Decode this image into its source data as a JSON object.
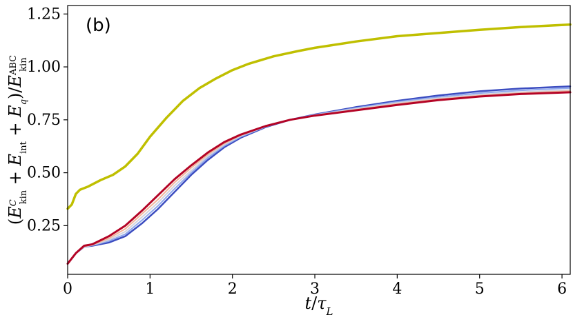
{
  "chart_data": {
    "type": "line",
    "panel_label": "(b)",
    "xlabel": "t/τ_L",
    "ylabel": "(E_kin^C + E_int + E_q)/E_kin^ABC",
    "xlim": [
      0,
      6.1
    ],
    "ylim": [
      0.02,
      1.29
    ],
    "xticks": [
      0,
      1,
      2,
      3,
      4,
      5,
      6
    ],
    "yticks": [
      0.25,
      0.5,
      0.75,
      1.0,
      1.25
    ],
    "x_tick_labels": [
      "0",
      "1",
      "2",
      "3",
      "4",
      "5",
      "6"
    ],
    "y_tick_labels": [
      "0.25",
      "0.50",
      "0.75",
      "1.00",
      "1.25"
    ],
    "grid": false,
    "legend": "none",
    "series": [
      {
        "color": "#bfbf00",
        "width": 3.5,
        "points": [
          [
            0,
            0.33
          ],
          [
            0.05,
            0.35
          ],
          [
            0.1,
            0.4
          ],
          [
            0.15,
            0.42
          ],
          [
            0.25,
            0.435
          ],
          [
            0.4,
            0.465
          ],
          [
            0.55,
            0.49
          ],
          [
            0.7,
            0.53
          ],
          [
            0.85,
            0.59
          ],
          [
            1.0,
            0.67
          ],
          [
            1.2,
            0.76
          ],
          [
            1.4,
            0.84
          ],
          [
            1.6,
            0.9
          ],
          [
            1.8,
            0.945
          ],
          [
            2.0,
            0.985
          ],
          [
            2.2,
            1.015
          ],
          [
            2.5,
            1.05
          ],
          [
            2.8,
            1.075
          ],
          [
            3.0,
            1.09
          ],
          [
            3.5,
            1.12
          ],
          [
            4.0,
            1.145
          ],
          [
            4.5,
            1.16
          ],
          [
            5.0,
            1.175
          ],
          [
            5.5,
            1.188
          ],
          [
            6.1,
            1.2
          ]
        ]
      },
      {
        "color": "#3b4cc0",
        "width": 2.5,
        "points": [
          [
            0,
            0.07
          ],
          [
            0.1,
            0.12
          ],
          [
            0.2,
            0.15
          ],
          [
            0.3,
            0.155
          ],
          [
            0.5,
            0.17
          ],
          [
            0.7,
            0.2
          ],
          [
            0.9,
            0.26
          ],
          [
            1.1,
            0.33
          ],
          [
            1.3,
            0.41
          ],
          [
            1.5,
            0.49
          ],
          [
            1.7,
            0.56
          ],
          [
            1.9,
            0.62
          ],
          [
            2.1,
            0.665
          ],
          [
            2.4,
            0.715
          ],
          [
            2.7,
            0.75
          ],
          [
            3.0,
            0.775
          ],
          [
            3.5,
            0.81
          ],
          [
            4.0,
            0.84
          ],
          [
            4.5,
            0.865
          ],
          [
            5.0,
            0.885
          ],
          [
            5.5,
            0.898
          ],
          [
            6.1,
            0.908
          ]
        ]
      },
      {
        "color": "#8fa8ee",
        "width": 2,
        "points": [
          [
            0,
            0.07
          ],
          [
            0.1,
            0.12
          ],
          [
            0.2,
            0.15
          ],
          [
            0.3,
            0.157
          ],
          [
            0.5,
            0.177
          ],
          [
            0.7,
            0.21
          ],
          [
            0.9,
            0.275
          ],
          [
            1.1,
            0.345
          ],
          [
            1.3,
            0.425
          ],
          [
            1.5,
            0.5
          ],
          [
            1.7,
            0.57
          ],
          [
            1.9,
            0.627
          ],
          [
            2.1,
            0.67
          ],
          [
            2.4,
            0.717
          ],
          [
            2.7,
            0.75
          ],
          [
            3.0,
            0.774
          ],
          [
            3.5,
            0.806
          ],
          [
            4.0,
            0.835
          ],
          [
            4.5,
            0.858
          ],
          [
            5.0,
            0.876
          ],
          [
            5.5,
            0.889
          ],
          [
            6.1,
            0.9
          ]
        ]
      },
      {
        "color": "#d3d3dc",
        "width": 2,
        "points": [
          [
            0,
            0.07
          ],
          [
            0.1,
            0.12
          ],
          [
            0.2,
            0.15
          ],
          [
            0.3,
            0.158
          ],
          [
            0.5,
            0.183
          ],
          [
            0.7,
            0.222
          ],
          [
            0.9,
            0.29
          ],
          [
            1.1,
            0.36
          ],
          [
            1.3,
            0.44
          ],
          [
            1.5,
            0.51
          ],
          [
            1.7,
            0.578
          ],
          [
            1.9,
            0.633
          ],
          [
            2.1,
            0.674
          ],
          [
            2.4,
            0.718
          ],
          [
            2.7,
            0.75
          ],
          [
            3.0,
            0.772
          ],
          [
            3.5,
            0.802
          ],
          [
            4.0,
            0.83
          ],
          [
            4.5,
            0.852
          ],
          [
            5.0,
            0.869
          ],
          [
            5.5,
            0.881
          ],
          [
            6.1,
            0.891
          ]
        ]
      },
      {
        "color": "#f2b49a",
        "width": 2,
        "points": [
          [
            0,
            0.07
          ],
          [
            0.1,
            0.12
          ],
          [
            0.2,
            0.152
          ],
          [
            0.3,
            0.16
          ],
          [
            0.5,
            0.19
          ],
          [
            0.7,
            0.235
          ],
          [
            0.9,
            0.305
          ],
          [
            1.1,
            0.375
          ],
          [
            1.3,
            0.455
          ],
          [
            1.5,
            0.523
          ],
          [
            1.7,
            0.586
          ],
          [
            1.9,
            0.638
          ],
          [
            2.1,
            0.677
          ],
          [
            2.4,
            0.72
          ],
          [
            2.7,
            0.75
          ],
          [
            3.0,
            0.77
          ],
          [
            3.5,
            0.798
          ],
          [
            4.0,
            0.825
          ],
          [
            4.5,
            0.847
          ],
          [
            5.0,
            0.864
          ],
          [
            5.5,
            0.876
          ],
          [
            6.1,
            0.886
          ]
        ]
      },
      {
        "color": "#b40426",
        "width": 3,
        "points": [
          [
            0,
            0.07
          ],
          [
            0.1,
            0.12
          ],
          [
            0.2,
            0.155
          ],
          [
            0.3,
            0.162
          ],
          [
            0.5,
            0.2
          ],
          [
            0.7,
            0.25
          ],
          [
            0.9,
            0.32
          ],
          [
            1.1,
            0.395
          ],
          [
            1.3,
            0.47
          ],
          [
            1.5,
            0.535
          ],
          [
            1.7,
            0.595
          ],
          [
            1.9,
            0.645
          ],
          [
            2.1,
            0.68
          ],
          [
            2.4,
            0.72
          ],
          [
            2.7,
            0.75
          ],
          [
            3.0,
            0.77
          ],
          [
            3.5,
            0.795
          ],
          [
            4.0,
            0.82
          ],
          [
            4.5,
            0.843
          ],
          [
            5.0,
            0.86
          ],
          [
            5.5,
            0.872
          ],
          [
            6.1,
            0.88
          ]
        ]
      }
    ]
  }
}
